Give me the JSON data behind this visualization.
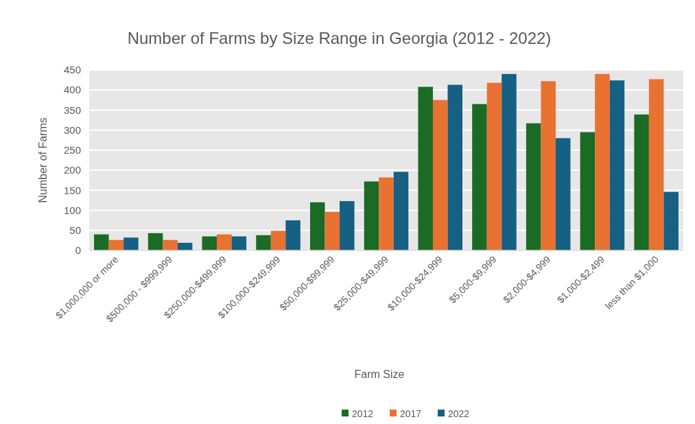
{
  "chart_data": {
    "type": "bar",
    "title": "Number of Farms by Size Range in Georgia (2012 - 2022)",
    "xlabel": "Farm Size",
    "ylabel": "Number of Farms",
    "categories": [
      "$1,000,000 or more",
      "$500,000 - $999,999",
      "$250,000-$499,999",
      "$100,000-$249,999",
      "$50,000-$99,999",
      "$25,000-$49,999",
      "$10,000-$24,999",
      "$5,000-$9,999",
      "$2,000-$4,999",
      "$1,000-$2,499",
      "less than $1,000"
    ],
    "series": [
      {
        "name": "2012",
        "color": "#1b6b24",
        "values": [
          40,
          43,
          35,
          38,
          120,
          172,
          408,
          365,
          317,
          295,
          339
        ]
      },
      {
        "name": "2017",
        "color": "#e97132",
        "values": [
          26,
          26,
          40,
          49,
          96,
          182,
          375,
          418,
          422,
          440,
          427
        ]
      },
      {
        "name": "2022",
        "color": "#166083",
        "values": [
          32,
          19,
          35,
          75,
          123,
          196,
          413,
          440,
          280,
          424,
          146
        ]
      }
    ],
    "ylim": [
      0,
      450
    ],
    "yticks": [
      0,
      50,
      100,
      150,
      200,
      250,
      300,
      350,
      400,
      450
    ],
    "grid": "y",
    "legend": "bottom"
  }
}
